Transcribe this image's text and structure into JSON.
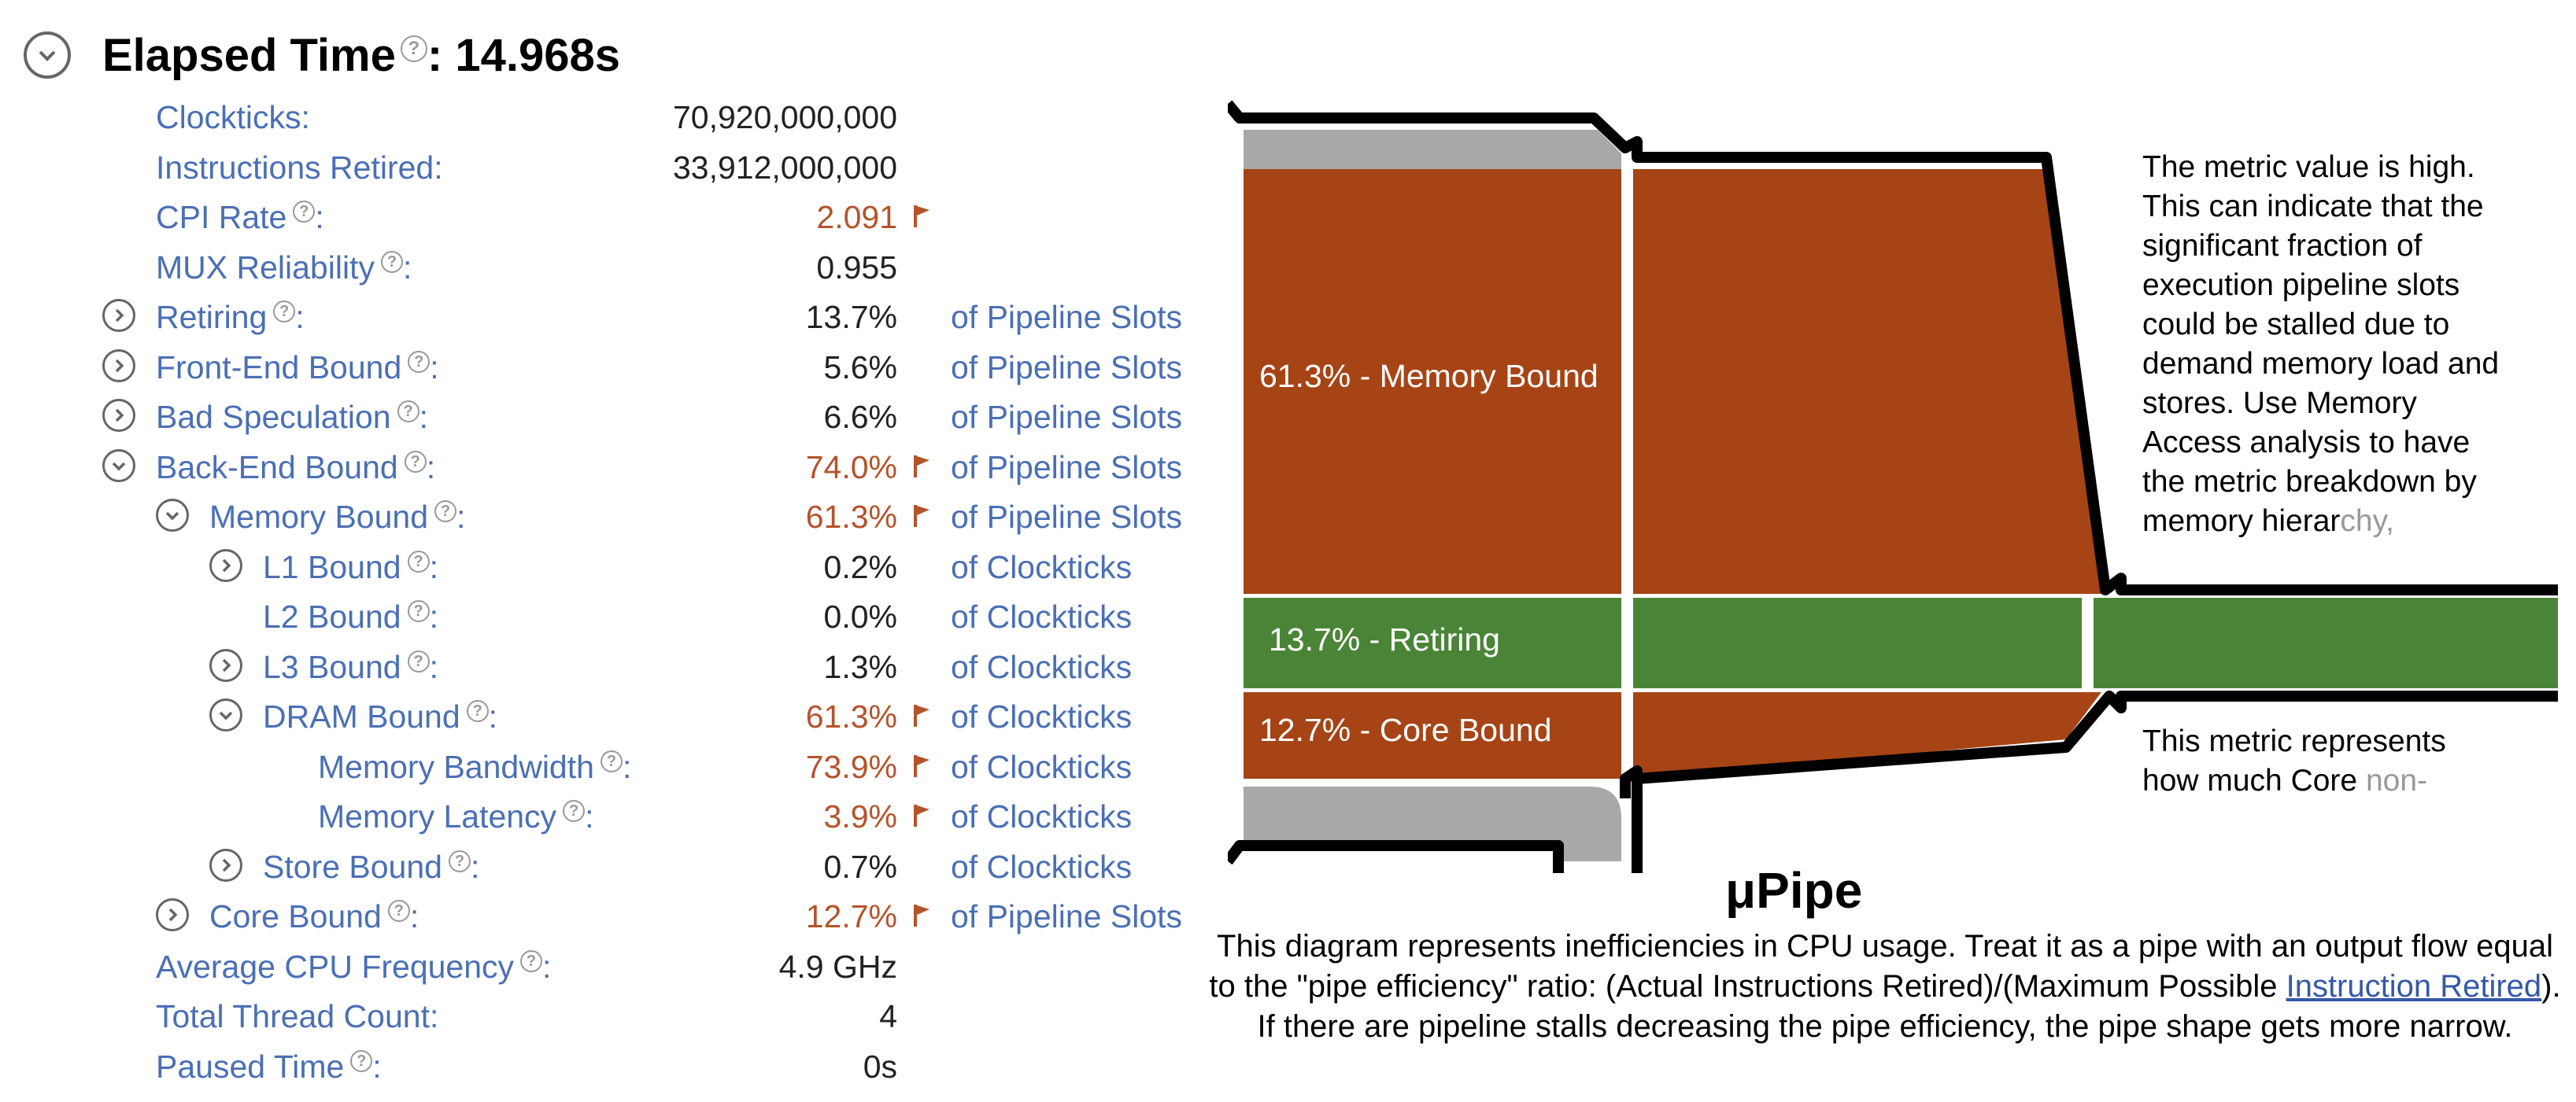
{
  "header": {
    "title": "Elapsed Time",
    "value": "14.968s"
  },
  "metrics": [
    {
      "label": "Clockticks",
      "value": "70,920,000,000",
      "unit": "",
      "help": false,
      "expander": "none",
      "flag": false,
      "indent": 0
    },
    {
      "label": "Instructions Retired",
      "value": "33,912,000,000",
      "unit": "",
      "help": false,
      "expander": "none",
      "flag": false,
      "indent": 0
    },
    {
      "label": "CPI Rate",
      "value": "2.091",
      "unit": "",
      "help": true,
      "expander": "none",
      "flag": true,
      "indent": 0
    },
    {
      "label": "MUX Reliability",
      "value": "0.955",
      "unit": "",
      "help": true,
      "expander": "none",
      "flag": false,
      "indent": 0
    },
    {
      "label": "Retiring",
      "value": "13.7%",
      "unit": "of Pipeline Slots",
      "help": true,
      "expander": "expand",
      "flag": false,
      "indent": 0
    },
    {
      "label": "Front-End Bound",
      "value": "5.6%",
      "unit": "of Pipeline Slots",
      "help": true,
      "expander": "expand",
      "flag": false,
      "indent": 0
    },
    {
      "label": "Bad Speculation",
      "value": "6.6%",
      "unit": "of Pipeline Slots",
      "help": true,
      "expander": "expand",
      "flag": false,
      "indent": 0
    },
    {
      "label": "Back-End Bound",
      "value": "74.0%",
      "unit": "of Pipeline Slots",
      "help": true,
      "expander": "collapse",
      "flag": true,
      "indent": 0
    },
    {
      "label": "Memory Bound",
      "value": "61.3%",
      "unit": "of Pipeline Slots",
      "help": true,
      "expander": "collapse",
      "flag": true,
      "indent": 1
    },
    {
      "label": "L1 Bound",
      "value": "0.2%",
      "unit": "of Clockticks",
      "help": true,
      "expander": "expand",
      "flag": false,
      "indent": 2
    },
    {
      "label": "L2 Bound",
      "value": "0.0%",
      "unit": "of Clockticks",
      "help": true,
      "expander": "none",
      "flag": false,
      "indent": 2
    },
    {
      "label": "L3 Bound",
      "value": "1.3%",
      "unit": "of Clockticks",
      "help": true,
      "expander": "expand",
      "flag": false,
      "indent": 2
    },
    {
      "label": "DRAM Bound",
      "value": "61.3%",
      "unit": "of Clockticks",
      "help": true,
      "expander": "collapse",
      "flag": true,
      "indent": 2
    },
    {
      "label": "Memory Bandwidth",
      "value": "73.9%",
      "unit": "of Clockticks",
      "help": true,
      "expander": "none",
      "flag": true,
      "indent": 3
    },
    {
      "label": "Memory Latency",
      "value": "3.9%",
      "unit": "of Clockticks",
      "help": true,
      "expander": "none",
      "flag": true,
      "indent": 3
    },
    {
      "label": "Store Bound",
      "value": "0.7%",
      "unit": "of Clockticks",
      "help": true,
      "expander": "expand",
      "flag": false,
      "indent": 2
    },
    {
      "label": "Core Bound",
      "value": "12.7%",
      "unit": "of Pipeline Slots",
      "help": true,
      "expander": "expand",
      "flag": true,
      "indent": 1
    },
    {
      "label": "Average CPU Frequency",
      "value": "4.9 GHz",
      "unit": "",
      "help": true,
      "expander": "none",
      "flag": false,
      "indent": 0
    },
    {
      "label": "Total Thread Count",
      "value": "4",
      "unit": "",
      "help": false,
      "expander": "none",
      "flag": false,
      "indent": 0
    },
    {
      "label": "Paused Time",
      "value": "0s",
      "unit": "",
      "help": true,
      "expander": "none",
      "flag": false,
      "indent": 0
    }
  ],
  "pipe": {
    "memory_bound_label": "61.3% - Memory Bound",
    "retiring_label": "13.7% - Retiring",
    "core_bound_label": "12.7% - Core Bound",
    "note_high_lines": [
      "The metric value is high.",
      "This can indicate that the",
      "significant fraction of",
      "execution pipeline slots",
      "could be stalled due to",
      "demand memory load and",
      "stores. Use Memory",
      "Access analysis to have",
      "the metric breakdown by"
    ],
    "note_high_last": "memory hierar",
    "note_high_last_fade": "chy,",
    "note_core_line1": "This metric represents",
    "note_core_line2": "how much Core ",
    "note_core_line2_fade": "non-"
  },
  "upipe": {
    "title": "μPipe",
    "desc_part1": "This diagram represents inefficiencies in CPU usage. Treat it as a pipe with an output flow equal to the \"pipe efficiency\" ratio: (Actual Instructions Retired)/(Maximum Possible ",
    "desc_link": "Instruction Retired",
    "desc_part2": "). If there are pipeline stalls decreasing the pipe efficiency, the pipe shape gets more narrow."
  },
  "colors": {
    "label_link": "#4a6fb5",
    "value_high": "#b5532a",
    "flag": "#b5532a",
    "memory_bound_fill": "#a64416",
    "retiring_fill": "#4a8537",
    "gray_fill": "#a8a8a8"
  }
}
